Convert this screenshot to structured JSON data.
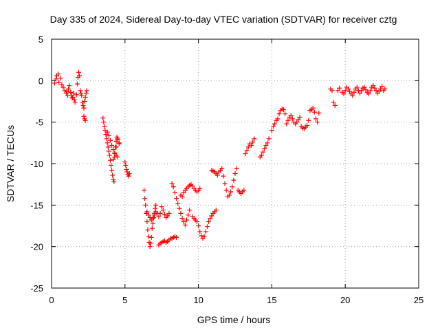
{
  "chart_data": {
    "type": "scatter",
    "title": "Day 335 of 2024, Sidereal Day-to-day VTEC variation (SDTVAR) for receiver cztg",
    "xlabel": "GPS time / hours",
    "ylabel": "SDTVAR / TECUs",
    "xlim": [
      0,
      25
    ],
    "ylim": [
      -25,
      5
    ],
    "xticks": [
      0,
      5,
      10,
      15,
      20,
      25
    ],
    "yticks": [
      5,
      0,
      -5,
      -10,
      -15,
      -20,
      -25
    ],
    "xtick_labels": [
      "0",
      "5",
      "10",
      "15",
      "20",
      "25"
    ],
    "ytick_labels": [
      "5",
      "0",
      "-5",
      "-10",
      "-15",
      "-20",
      "-25"
    ],
    "grid": true,
    "marker": "+",
    "color": "#ff0000",
    "series": [
      {
        "name": "cztg",
        "x": [
          0.2,
          0.3,
          0.35,
          0.45,
          0.5,
          0.6,
          0.7,
          0.8,
          0.9,
          1.0,
          1.05,
          1.1,
          1.15,
          1.2,
          1.3,
          1.35,
          1.4,
          1.45,
          1.5,
          1.55,
          1.6,
          1.7,
          1.75,
          1.8,
          1.85,
          1.9,
          1.95,
          2.0,
          2.05,
          2.1,
          2.15,
          2.2,
          2.25,
          2.3,
          2.35,
          2.4,
          2.2,
          2.25,
          2.3,
          3.5,
          3.55,
          3.6,
          3.65,
          3.7,
          3.75,
          3.8,
          3.85,
          3.9,
          3.95,
          4.0,
          4.05,
          4.1,
          4.15,
          4.2,
          4.25,
          4.3,
          4.35,
          4.4,
          4.45,
          4.5,
          3.8,
          3.9,
          4.0,
          4.1,
          4.2,
          4.3,
          4.4,
          4.5,
          4.6,
          4.2,
          4.3,
          4.4,
          4.5,
          4.6,
          5.0,
          5.05,
          5.1,
          5.15,
          5.2,
          5.25,
          5.3,
          6.3,
          6.35,
          6.4,
          6.45,
          6.5,
          6.55,
          6.6,
          6.65,
          6.7,
          6.75,
          6.8,
          6.85,
          6.9,
          6.95,
          7.0,
          7.05,
          7.1,
          6.5,
          6.6,
          6.7,
          6.8,
          6.9,
          7.0,
          7.1,
          7.2,
          7.3,
          7.4,
          7.5,
          7.6,
          7.7,
          7.8,
          7.9,
          8.0,
          7.3,
          7.4,
          7.5,
          7.6,
          7.7,
          7.8,
          7.9,
          8.0,
          8.1,
          8.2,
          8.3,
          8.4,
          8.5,
          8.2,
          8.3,
          8.4,
          8.5,
          8.6,
          8.7,
          8.8,
          8.9,
          9.0,
          9.1,
          9.2,
          9.3,
          9.4,
          8.8,
          8.9,
          9.0,
          9.1,
          9.2,
          9.3,
          9.4,
          9.5,
          9.6,
          9.7,
          9.8,
          9.9,
          10.0,
          10.1,
          9.6,
          9.7,
          9.8,
          9.9,
          10.0,
          10.1,
          10.2,
          10.3,
          10.4,
          10.5,
          10.6,
          10.7,
          10.8,
          10.9,
          11.0,
          11.1,
          11.2,
          10.9,
          11.0,
          11.1,
          11.2,
          11.3,
          11.4,
          11.5,
          11.6,
          11.7,
          11.8,
          11.9,
          12.0,
          12.1,
          12.2,
          12.3,
          12.4,
          12.5,
          12.6,
          12.7,
          12.8,
          12.9,
          13.0,
          13.1,
          13.2,
          13.3,
          13.4,
          13.5,
          13.6,
          13.7,
          13.8,
          14.2,
          14.3,
          14.4,
          14.5,
          14.6,
          14.7,
          14.8,
          15.0,
          15.1,
          15.2,
          15.3,
          15.4,
          15.5,
          15.6,
          15.7,
          15.8,
          15.9,
          16.0,
          16.1,
          16.2,
          16.3,
          16.4,
          16.5,
          16.6,
          16.7,
          16.8,
          16.9,
          17.0,
          17.1,
          17.2,
          17.3,
          17.4,
          17.5,
          17.6,
          17.7,
          17.8,
          17.9,
          18.0,
          18.1,
          18.2,
          19.0,
          19.1,
          19.2,
          19.3,
          19.5,
          19.6,
          19.8,
          19.9,
          20.0,
          20.1,
          20.2,
          20.3,
          20.4,
          20.5,
          20.6,
          20.7,
          20.8,
          20.9,
          21.0,
          21.1,
          21.2,
          21.3,
          21.4,
          21.5,
          21.6,
          21.7,
          21.8,
          21.9,
          22.0,
          22.1,
          22.2,
          22.3,
          22.4,
          22.5,
          22.6,
          22.7
        ],
        "y": [
          -0.3,
          0.2,
          0.6,
          0.8,
          -0.2,
          0.3,
          -0.5,
          -0.8,
          -1.2,
          -1.5,
          -1.3,
          -1.8,
          -1.0,
          -0.6,
          -1.4,
          -1.8,
          -2.1,
          -2.0,
          -1.5,
          -2.3,
          -2.6,
          -1.7,
          -0.4,
          0.4,
          1.0,
          0.6,
          -1.2,
          -1.5,
          -1.8,
          -2.6,
          -3.0,
          -3.3,
          -2.5,
          -2.0,
          -1.5,
          -1.2,
          -4.3,
          -4.6,
          -4.8,
          -4.5,
          -5.0,
          -5.5,
          -6.0,
          -6.5,
          -7.0,
          -7.5,
          -8.0,
          -8.5,
          -9.0,
          -9.6,
          -10.2,
          -10.8,
          -11.4,
          -11.9,
          -12.2,
          -8.8,
          -8.0,
          -7.3,
          -6.8,
          -7.0,
          -6.2,
          -6.6,
          -7.2,
          -7.8,
          -8.3,
          -8.7,
          -9.0,
          -9.2,
          -7.6,
          -9.5,
          -9.2,
          -8.0,
          -7.1,
          -7.5,
          -9.8,
          -10.2,
          -10.7,
          -11.0,
          -11.3,
          -11.5,
          -11.2,
          -13.2,
          -14.2,
          -15.0,
          -16.0,
          -17.0,
          -18.0,
          -18.8,
          -19.5,
          -20.0,
          -19.6,
          -18.9,
          -17.8,
          -17.2,
          -16.5,
          -16.0,
          -15.4,
          -15.0,
          -15.8,
          -16.2,
          -16.5,
          -16.8,
          -16.6,
          -16.2,
          -15.8,
          -16.0,
          -16.4,
          -16.0,
          -15.2,
          -15.6,
          -16.1,
          -16.5,
          -16.3,
          -16.0,
          -19.8,
          -19.6,
          -19.5,
          -19.4,
          -19.3,
          -19.5,
          -19.4,
          -19.2,
          -19.0,
          -19.0,
          -18.9,
          -18.8,
          -18.9,
          -12.4,
          -12.8,
          -13.5,
          -14.2,
          -14.8,
          -15.4,
          -16.0,
          -16.6,
          -17.0,
          -17.4,
          -16.8,
          -16.2,
          -15.6,
          -13.8,
          -14.0,
          -13.5,
          -13.2,
          -13.0,
          -12.8,
          -12.6,
          -12.5,
          -12.7,
          -13.0,
          -13.2,
          -13.4,
          -13.2,
          -13.0,
          -16.4,
          -16.6,
          -16.8,
          -17.0,
          -17.5,
          -18.2,
          -18.7,
          -19.0,
          -18.8,
          -18.2,
          -17.6,
          -17.0,
          -16.6,
          -16.3,
          -16.0,
          -15.8,
          -15.6,
          -10.8,
          -10.9,
          -11.0,
          -11.2,
          -11.4,
          -11.0,
          -10.8,
          -10.6,
          -11.5,
          -12.4,
          -13.2,
          -14.0,
          -13.8,
          -13.4,
          -12.8,
          -12.0,
          -11.2,
          -10.6,
          -13.2,
          -13.4,
          -13.6,
          -13.4,
          -13.2,
          -8.8,
          -8.4,
          -8.0,
          -7.6,
          -7.8,
          -7.4,
          -7.0,
          -9.2,
          -9.0,
          -8.6,
          -8.2,
          -7.8,
          -7.5,
          -7.0,
          -6.0,
          -5.5,
          -5.2,
          -4.8,
          -4.6,
          -4.0,
          -3.6,
          -3.4,
          -3.5,
          -4.0,
          -5.2,
          -4.8,
          -4.4,
          -4.2,
          -4.6,
          -5.0,
          -5.2,
          -5.0,
          -4.7,
          -4.4,
          -5.5,
          -5.7,
          -5.8,
          -5.6,
          -5.4,
          -4.8,
          -3.6,
          -3.5,
          -3.3,
          -3.8,
          -4.6,
          -5.0,
          -3.9,
          -1.0,
          -1.2,
          -2.6,
          -3.0,
          -1.2,
          -0.9,
          -1.4,
          -1.6,
          -1.2,
          -0.8,
          -1.0,
          -1.3,
          -1.6,
          -1.8,
          -1.4,
          -1.0,
          -0.8,
          -1.2,
          -1.5,
          -1.2,
          -0.9,
          -0.8,
          -1.1,
          -1.4,
          -1.6,
          -1.2,
          -0.8,
          -0.6,
          -0.9,
          -1.2,
          -1.5,
          -1.3,
          -1.0,
          -0.7,
          -1.2,
          -1.0
        ]
      }
    ]
  }
}
